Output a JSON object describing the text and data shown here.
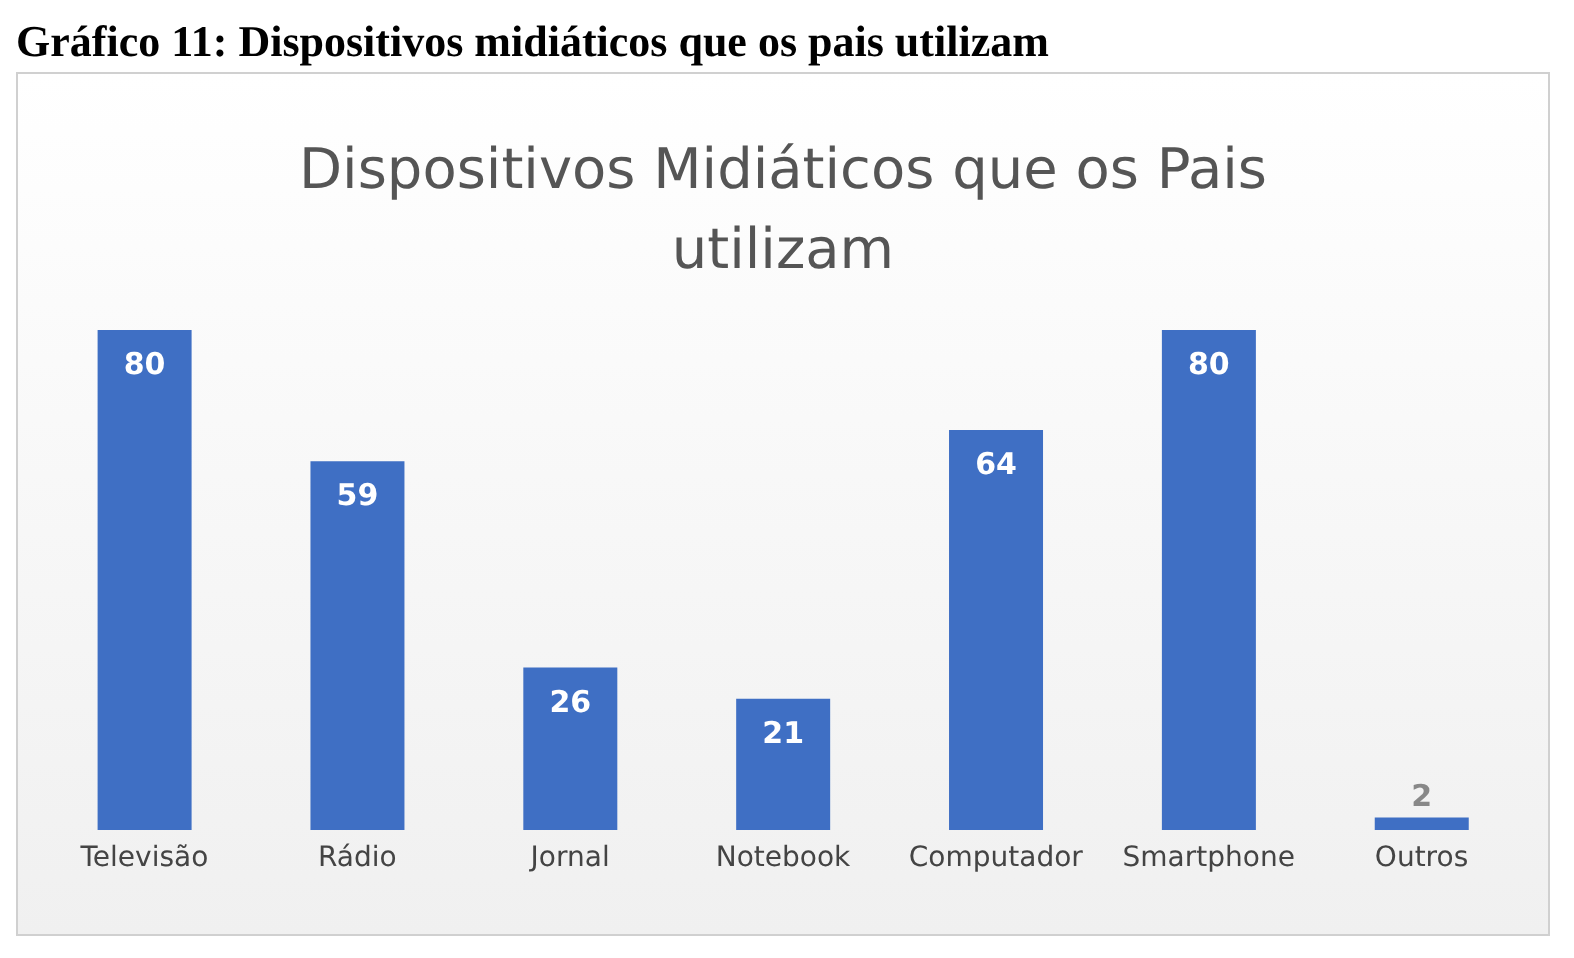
{
  "chart_data": {
    "type": "bar",
    "title": "Dispositivos Midiáticos que os Pais utilizam",
    "annotations": [
      "Gráfico 11: Dispositivos midiáticos que os pais utilizam"
    ],
    "categories": [
      "Televisão",
      "Rádio",
      "Jornal",
      "Notebook",
      "Computador",
      "Smartphone",
      "Outros"
    ],
    "values": [
      80,
      59,
      26,
      21,
      64,
      80,
      2
    ],
    "color": "#3f6fc4",
    "data_labels": true,
    "grid": false,
    "legend": false
  }
}
